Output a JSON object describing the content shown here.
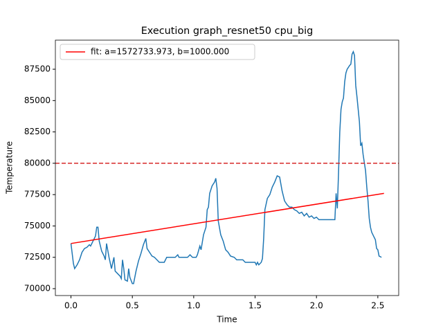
{
  "chart_data": {
    "type": "line",
    "title": "Execution graph_resnet50 cpu_big",
    "xlabel": "Time",
    "ylabel": "Temperature",
    "xlim": [
      -0.127,
      2.67
    ],
    "ylim": [
      69450,
      89820
    ],
    "xticks": [
      {
        "value": 0,
        "label": "0.0"
      },
      0.5,
      {
        "value": 1,
        "label": "1.0"
      },
      1.5,
      {
        "value": 2,
        "label": "2.0"
      },
      2.5
    ],
    "yticks": [
      70000,
      72500,
      75000,
      77500,
      80000,
      82500,
      85000,
      87500
    ],
    "legend": "upper left",
    "hline": {
      "value": 80000,
      "color": "#d62728",
      "style": "dashed"
    },
    "series": [
      {
        "color": "#1f77b4",
        "x": [
          0.0,
          0.02,
          0.03,
          0.05,
          0.07,
          0.09,
          0.11,
          0.13,
          0.15,
          0.16,
          0.18,
          0.2,
          0.21,
          0.22,
          0.23,
          0.25,
          0.27,
          0.28,
          0.29,
          0.31,
          0.33,
          0.35,
          0.36,
          0.38,
          0.4,
          0.41,
          0.42,
          0.43,
          0.44,
          0.46,
          0.47,
          0.48,
          0.5,
          0.51,
          0.53,
          0.55,
          0.57,
          0.59,
          0.61,
          0.62,
          0.64,
          0.66,
          0.68,
          0.7,
          0.72,
          0.74,
          0.76,
          0.78,
          0.85,
          0.87,
          0.88,
          0.95,
          0.97,
          0.99,
          1.02,
          1.03,
          1.05,
          1.06,
          1.08,
          1.1,
          1.11,
          1.12,
          1.13,
          1.15,
          1.17,
          1.18,
          1.19,
          1.2,
          1.22,
          1.24,
          1.26,
          1.28,
          1.3,
          1.33,
          1.35,
          1.4,
          1.42,
          1.5,
          1.51,
          1.52,
          1.53,
          1.55,
          1.56,
          1.57,
          1.58,
          1.6,
          1.62,
          1.64,
          1.66,
          1.68,
          1.7,
          1.72,
          1.74,
          1.76,
          1.78,
          1.8,
          1.82,
          1.84,
          1.86,
          1.88,
          1.9,
          1.92,
          1.94,
          1.96,
          1.98,
          2.0,
          2.02,
          2.05,
          2.08,
          2.1,
          2.15,
          2.16,
          2.17,
          2.18,
          2.19,
          2.2,
          2.21,
          2.22,
          2.23,
          2.24,
          2.25,
          2.27,
          2.28,
          2.29,
          2.3,
          2.31,
          2.32,
          2.33,
          2.35,
          2.36,
          2.37,
          2.38,
          2.4,
          2.41,
          2.42,
          2.43,
          2.44,
          2.45,
          2.47,
          2.48,
          2.49,
          2.5,
          2.51,
          2.53
        ],
        "values": [
          73600,
          72000,
          71600,
          71900,
          72300,
          72900,
          73200,
          73300,
          73500,
          73400,
          73800,
          74200,
          74900,
          74900,
          73800,
          73000,
          72600,
          72300,
          73600,
          72500,
          71600,
          72500,
          71400,
          71200,
          71000,
          70800,
          72300,
          71600,
          70700,
          70600,
          71600,
          70900,
          70400,
          70400,
          71400,
          72200,
          72800,
          73500,
          74000,
          73200,
          72900,
          72600,
          72500,
          72300,
          72100,
          72100,
          72100,
          72500,
          72500,
          72700,
          72500,
          72500,
          72700,
          72500,
          72500,
          72700,
          73400,
          73100,
          74300,
          74900,
          76300,
          76500,
          77600,
          78200,
          78500,
          78800,
          78000,
          75400,
          74300,
          73800,
          73100,
          72900,
          72600,
          72500,
          72300,
          72300,
          72100,
          72100,
          71900,
          72100,
          71900,
          72100,
          72400,
          74000,
          76300,
          77200,
          77500,
          78100,
          78500,
          79000,
          78900,
          77800,
          77000,
          76700,
          76500,
          76500,
          76300,
          76200,
          76000,
          76100,
          75800,
          76000,
          75700,
          75800,
          75600,
          75700,
          75500,
          75500,
          75500,
          75500,
          75500,
          77600,
          76400,
          79300,
          82500,
          84300,
          84900,
          85200,
          86500,
          87200,
          87500,
          87800,
          87900,
          88700,
          88900,
          88600,
          86200,
          85300,
          83300,
          81400,
          81600,
          80700,
          79400,
          78100,
          77000,
          75600,
          74900,
          74500,
          74100,
          73900,
          73200,
          73100,
          72600,
          72500
        ]
      },
      {
        "name": "fit: a=1572733.973, b=1000.000",
        "color": "#ff0000",
        "x": [
          0.0,
          2.55
        ],
        "values": [
          73600,
          77600
        ]
      }
    ]
  }
}
